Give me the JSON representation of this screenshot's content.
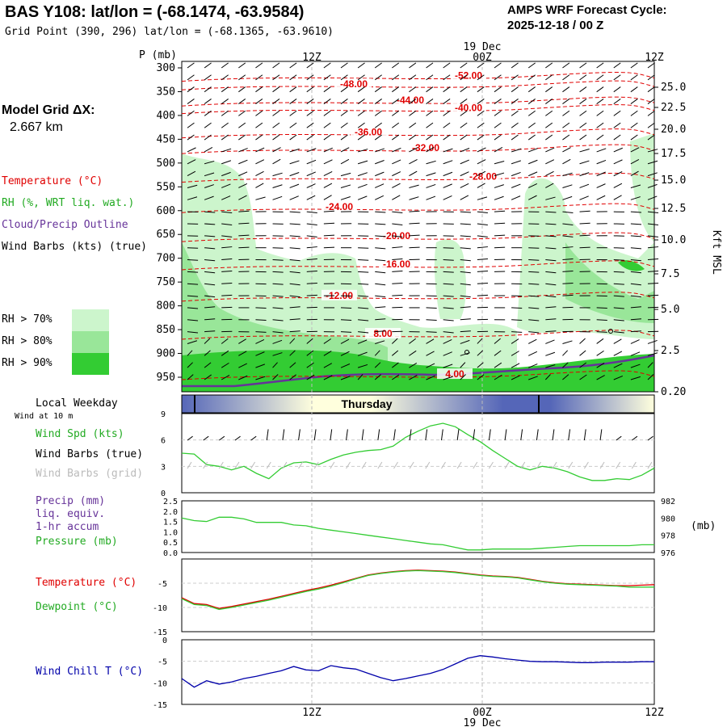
{
  "header": {
    "title": "BAS Y108:  lat/lon = (-68.1474, -63.9584)",
    "grid_point": "Grid Point (390, 296) lat/lon = (-68.1365, -63.9610)",
    "forecast_title": "AMPS WRF Forecast Cycle:",
    "forecast_cycle": "2025-12-18 / 00  Z"
  },
  "time_axis": {
    "labels": [
      "12Z",
      "00Z",
      "12Z"
    ],
    "date_label": "19 Dec"
  },
  "legend": {
    "model_grid": "Model Grid ΔX:",
    "model_grid_value": "2.667 km",
    "temperature": "Temperature (°C)",
    "rh": "RH (%, WRT liq. wat.)",
    "cloud": "Cloud/Precip Outline",
    "wind_barbs": "Wind Barbs (kts) (true)",
    "rh70": "RH > 70%",
    "rh80": "RH > 80%",
    "rh90": "RH > 90%",
    "colors": {
      "rh70": "#ccf5cc",
      "rh80": "#99e699",
      "rh90": "#33cc33",
      "temp": "#e00000",
      "cloud": "#663399"
    }
  },
  "weekday": {
    "title": "Local Weekday",
    "subtitle": "Wind at 10 m",
    "day": "Thursday"
  },
  "panels": {
    "wind": {
      "spd": "Wind Spd (kts)",
      "barbs_true": "Wind Barbs (true)",
      "barbs_grid": "Wind Barbs (grid)"
    },
    "precip": {
      "precip": "Precip (mm)",
      "liq": "liq. equiv.",
      "accum": "1-hr accum",
      "pressure": "Pressure (mb)",
      "mb_unit": "(mb)"
    },
    "temp": {
      "temperature": "Temperature (°C)",
      "dewpoint": "Dewpoint (°C)"
    },
    "chill": {
      "label": "Wind Chill T (°C)"
    }
  },
  "chart_data": [
    {
      "type": "heatmap",
      "name": "cross-section",
      "ylabel": "P (mb)",
      "ylabel_right": "Kft MSL",
      "pressure_ticks": [
        300,
        350,
        400,
        450,
        500,
        550,
        600,
        650,
        700,
        750,
        800,
        850,
        900,
        950
      ],
      "height_ticks": [
        "25.0",
        "22.5",
        "20.0",
        "17.5",
        "15.0",
        "12.5",
        "10.0",
        "7.5",
        "5.0",
        "2.5",
        "0.20"
      ],
      "temperature_isotherms": [
        {
          "label": "-52.00",
          "pressure": 318
        },
        {
          "label": "-48.00",
          "pressure": 336
        },
        {
          "label": "-44.00",
          "pressure": 370
        },
        {
          "label": "-40.00",
          "pressure": 386
        },
        {
          "label": "-36.00",
          "pressure": 437
        },
        {
          "label": "-32.00",
          "pressure": 470
        },
        {
          "label": "-28.00",
          "pressure": 530
        },
        {
          "label": "-24.00",
          "pressure": 594
        },
        {
          "label": "-20.00",
          "pressure": 655
        },
        {
          "label": "-16.00",
          "pressure": 714
        },
        {
          "label": "-12.00",
          "pressure": 780
        },
        {
          "label": "8.00",
          "pressure": 860
        },
        {
          "label": "4.00",
          "pressure": 945
        }
      ]
    },
    {
      "type": "line",
      "name": "wind-speed",
      "ylim": [
        0,
        9
      ],
      "yticks": [
        0,
        3,
        6,
        9
      ],
      "series": [
        {
          "name": "Wind Spd (kts)",
          "color": "#33cc33",
          "values": [
            4.5,
            4.4,
            3.2,
            3.0,
            2.6,
            3.0,
            2.2,
            1.6,
            2.8,
            3.4,
            3.5,
            3.2,
            3.8,
            4.3,
            4.6,
            4.8,
            4.9,
            5.3,
            6.3,
            7.0,
            7.6,
            7.9,
            7.5,
            6.6,
            5.8,
            4.8,
            3.9,
            3.0,
            2.6,
            3.0,
            2.8,
            2.4,
            1.8,
            1.4,
            1.4,
            1.6,
            1.5,
            2.0,
            2.8
          ]
        }
      ]
    },
    {
      "type": "line",
      "name": "pressure",
      "ylim": [
        976,
        982
      ],
      "yticks_left": [
        "0.0",
        "0.5",
        "1.0",
        "1.5",
        "2.0",
        "2.5"
      ],
      "yticks_right": [
        976,
        978,
        980,
        982
      ],
      "series": [
        {
          "name": "Pressure (mb)",
          "color": "#33cc33",
          "values": [
            980.0,
            979.7,
            979.6,
            980.1,
            980.1,
            979.9,
            979.5,
            979.5,
            979.5,
            979.2,
            979.1,
            978.8,
            978.6,
            978.4,
            978.2,
            978.0,
            977.8,
            977.6,
            977.4,
            977.2,
            977.0,
            976.9,
            976.6,
            976.3,
            976.3,
            976.4,
            976.4,
            976.4,
            976.4,
            976.5,
            976.6,
            976.7,
            976.8,
            976.8,
            976.8,
            976.8,
            976.8,
            976.9,
            976.9
          ]
        }
      ]
    },
    {
      "type": "line",
      "name": "temperature-dewpoint",
      "ylim": [
        -15,
        0
      ],
      "yticks": [
        -15,
        -10,
        -5
      ],
      "series": [
        {
          "name": "Temperature (°C)",
          "color": "#e00000",
          "values": [
            -8.0,
            -9.2,
            -9.4,
            -10.2,
            -9.8,
            -9.3,
            -8.8,
            -8.3,
            -7.7,
            -7.1,
            -6.5,
            -6.0,
            -5.4,
            -4.7,
            -4.0,
            -3.3,
            -2.9,
            -2.6,
            -2.4,
            -2.3,
            -2.4,
            -2.5,
            -2.7,
            -3.0,
            -3.3,
            -3.5,
            -3.6,
            -3.8,
            -4.2,
            -4.6,
            -4.9,
            -5.1,
            -5.2,
            -5.3,
            -5.4,
            -5.5,
            -5.5,
            -5.4,
            -5.3
          ]
        },
        {
          "name": "Dewpoint (°C)",
          "color": "#33cc33",
          "values": [
            -8.2,
            -9.4,
            -9.6,
            -10.4,
            -10.0,
            -9.5,
            -9.0,
            -8.5,
            -7.9,
            -7.3,
            -6.7,
            -6.2,
            -5.6,
            -4.9,
            -4.1,
            -3.4,
            -3.0,
            -2.7,
            -2.5,
            -2.4,
            -2.5,
            -2.6,
            -2.8,
            -3.1,
            -3.4,
            -3.6,
            -3.7,
            -3.9,
            -4.3,
            -4.7,
            -5.0,
            -5.2,
            -5.3,
            -5.4,
            -5.5,
            -5.6,
            -5.8,
            -5.8,
            -5.8
          ]
        }
      ]
    },
    {
      "type": "line",
      "name": "wind-chill",
      "ylim": [
        -15,
        0
      ],
      "yticks": [
        -15,
        -10,
        -5,
        0
      ],
      "series": [
        {
          "name": "Wind Chill T (°C)",
          "color": "#0000aa",
          "values": [
            -9.0,
            -11.0,
            -9.5,
            -10.3,
            -9.8,
            -9.0,
            -8.5,
            -7.8,
            -7.2,
            -6.2,
            -7.0,
            -7.2,
            -6.0,
            -6.5,
            -6.8,
            -7.8,
            -8.8,
            -9.5,
            -9.0,
            -8.4,
            -7.8,
            -6.9,
            -5.6,
            -4.3,
            -3.7,
            -4.0,
            -4.4,
            -4.7,
            -5.0,
            -5.1,
            -5.1,
            -5.2,
            -5.3,
            -5.3,
            -5.2,
            -5.2,
            -5.2,
            -5.1,
            -5.1
          ]
        }
      ]
    }
  ]
}
